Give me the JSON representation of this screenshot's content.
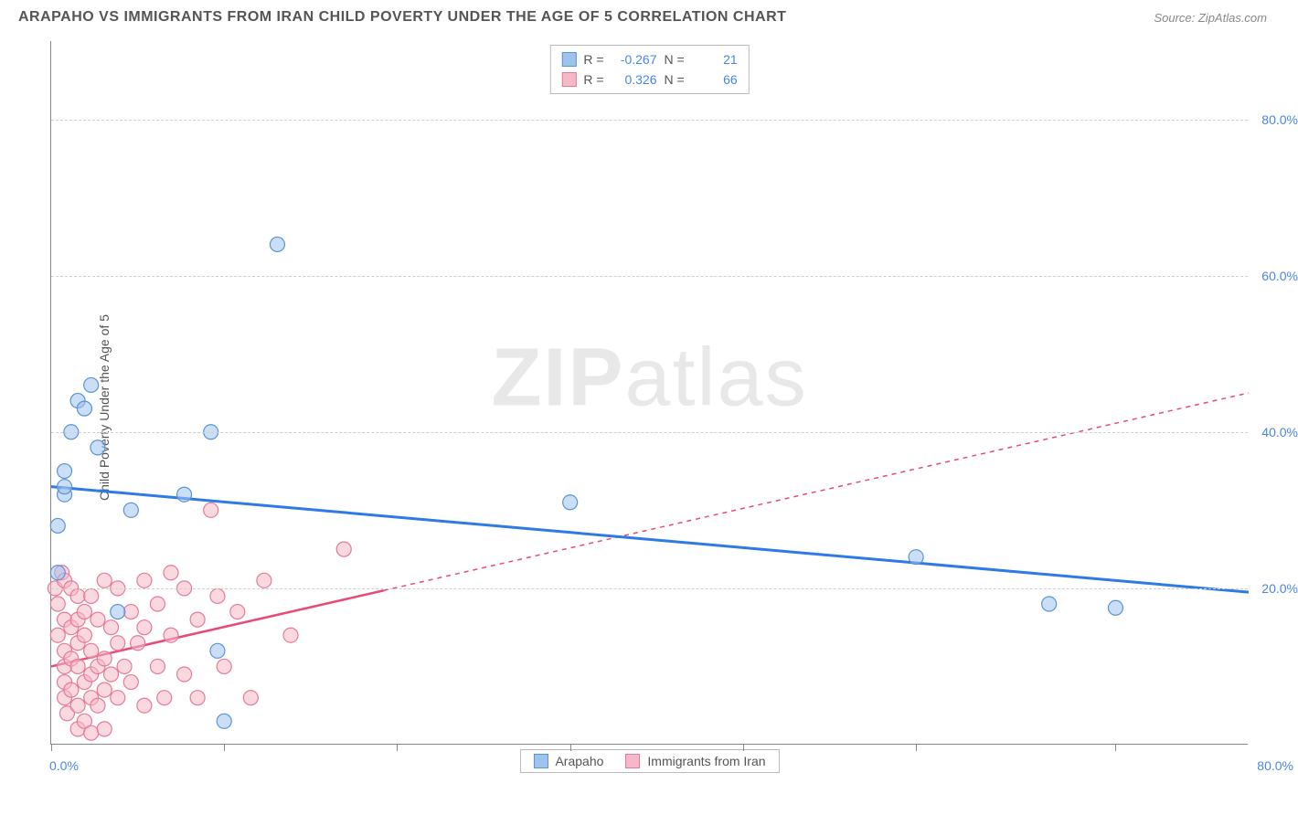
{
  "header": {
    "title": "ARAPAHO VS IMMIGRANTS FROM IRAN CHILD POVERTY UNDER THE AGE OF 5 CORRELATION CHART",
    "source_prefix": "Source: ",
    "source": "ZipAtlas.com"
  },
  "watermark": {
    "part1": "ZIP",
    "part2": "atlas"
  },
  "chart": {
    "type": "scatter",
    "ylabel": "Child Poverty Under the Age of 5",
    "xlim": [
      0,
      90
    ],
    "ylim": [
      0,
      90
    ],
    "xticks": [
      0,
      13,
      26,
      39,
      52,
      65,
      80
    ],
    "xtick_labels": {
      "0": "0.0%",
      "80": "80.0%"
    },
    "yticks": [
      20,
      40,
      60,
      80
    ],
    "ytick_labels": [
      "20.0%",
      "40.0%",
      "60.0%",
      "80.0%"
    ],
    "grid_color": "#d0d0d0",
    "background": "#ffffff",
    "axis_color": "#888888",
    "tick_label_color": "#4a86e8",
    "marker_radius": 8,
    "marker_opacity": 0.55,
    "marker_stroke_width": 1.2,
    "series": [
      {
        "name": "Arapaho",
        "color_fill": "#9ec3ed",
        "color_stroke": "#5a93d6",
        "r": -0.267,
        "n": 21,
        "trend": {
          "x1": 0,
          "y1": 33,
          "x2": 90,
          "y2": 19.5,
          "solid_until_x": 90,
          "color": "#2f7ae5",
          "width": 3
        },
        "points": [
          [
            0.5,
            22
          ],
          [
            0.5,
            28
          ],
          [
            1,
            32
          ],
          [
            1,
            33
          ],
          [
            1,
            35
          ],
          [
            1.5,
            40
          ],
          [
            2,
            44
          ],
          [
            2.5,
            43
          ],
          [
            3,
            46
          ],
          [
            3.5,
            38
          ],
          [
            5,
            17
          ],
          [
            6,
            30
          ],
          [
            10,
            32
          ],
          [
            12,
            40
          ],
          [
            12.5,
            12
          ],
          [
            13,
            3
          ],
          [
            17,
            64
          ],
          [
            39,
            31
          ],
          [
            65,
            24
          ],
          [
            75,
            18
          ],
          [
            80,
            17.5
          ]
        ]
      },
      {
        "name": "Immigrants from Iran",
        "color_fill": "#f5b8c7",
        "color_stroke": "#e77a99",
        "r": 0.326,
        "n": 66,
        "trend": {
          "x1": 0,
          "y1": 10,
          "x2": 90,
          "y2": 45,
          "solid_until_x": 25,
          "color": "#e84b77",
          "width": 2.5
        },
        "points": [
          [
            0.3,
            20
          ],
          [
            0.5,
            18
          ],
          [
            0.5,
            14
          ],
          [
            0.8,
            22
          ],
          [
            1,
            21
          ],
          [
            1,
            16
          ],
          [
            1,
            12
          ],
          [
            1,
            10
          ],
          [
            1,
            8
          ],
          [
            1,
            6
          ],
          [
            1.2,
            4
          ],
          [
            1.5,
            20
          ],
          [
            1.5,
            15
          ],
          [
            1.5,
            11
          ],
          [
            1.5,
            7
          ],
          [
            2,
            19
          ],
          [
            2,
            16
          ],
          [
            2,
            13
          ],
          [
            2,
            10
          ],
          [
            2,
            5
          ],
          [
            2,
            2
          ],
          [
            2.5,
            14
          ],
          [
            2.5,
            17
          ],
          [
            2.5,
            8
          ],
          [
            2.5,
            3
          ],
          [
            3,
            19
          ],
          [
            3,
            12
          ],
          [
            3,
            9
          ],
          [
            3,
            6
          ],
          [
            3,
            1.5
          ],
          [
            3.5,
            16
          ],
          [
            3.5,
            10
          ],
          [
            3.5,
            5
          ],
          [
            4,
            21
          ],
          [
            4,
            11
          ],
          [
            4,
            7
          ],
          [
            4,
            2
          ],
          [
            4.5,
            15
          ],
          [
            4.5,
            9
          ],
          [
            5,
            20
          ],
          [
            5,
            13
          ],
          [
            5,
            6
          ],
          [
            5.5,
            10
          ],
          [
            6,
            17
          ],
          [
            6,
            8
          ],
          [
            6.5,
            13
          ],
          [
            7,
            21
          ],
          [
            7,
            15
          ],
          [
            7,
            5
          ],
          [
            8,
            18
          ],
          [
            8,
            10
          ],
          [
            8.5,
            6
          ],
          [
            9,
            22
          ],
          [
            9,
            14
          ],
          [
            10,
            20
          ],
          [
            10,
            9
          ],
          [
            11,
            16
          ],
          [
            11,
            6
          ],
          [
            12,
            30
          ],
          [
            12.5,
            19
          ],
          [
            13,
            10
          ],
          [
            14,
            17
          ],
          [
            15,
            6
          ],
          [
            16,
            21
          ],
          [
            18,
            14
          ],
          [
            22,
            25
          ]
        ]
      }
    ]
  },
  "stats_labels": {
    "r": "R =",
    "n": "N ="
  },
  "legend": {
    "items": [
      "Arapaho",
      "Immigrants from Iran"
    ]
  }
}
